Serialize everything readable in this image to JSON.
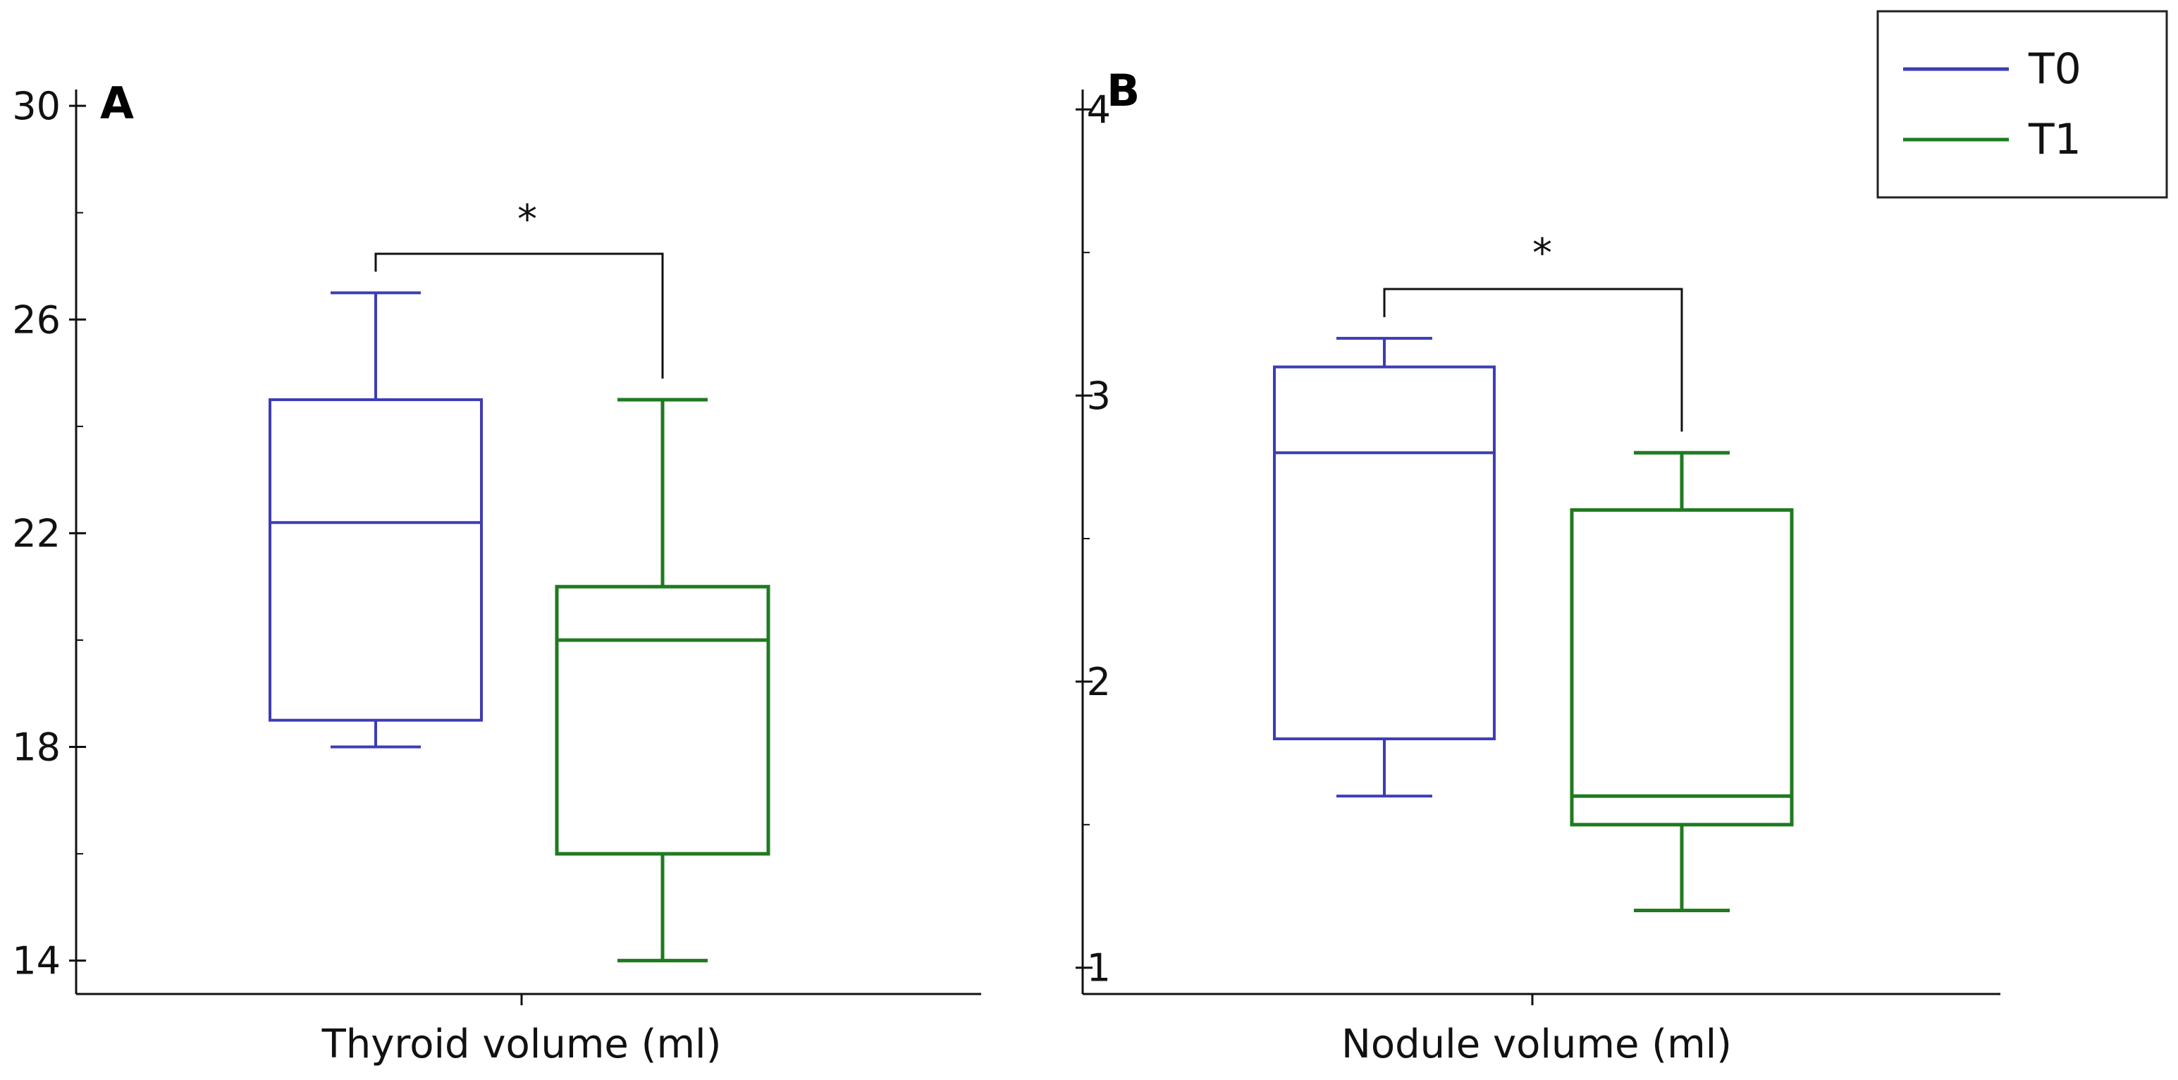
{
  "chart_data": [
    {
      "type": "box",
      "panel_label": "A",
      "xlabel": "Thyroid volume (ml)",
      "ylim": [
        13.6,
        30.2
      ],
      "y_ticks": [
        14,
        18,
        22,
        26,
        30
      ],
      "y_minor_ticks": [
        16,
        20,
        24,
        28
      ],
      "significance": "*",
      "series": [
        {
          "name": "T0",
          "whisker_low": 18.0,
          "q1": 18.5,
          "median": 22.2,
          "q3": 24.5,
          "whisker_high": 26.5
        },
        {
          "name": "T1",
          "whisker_low": 14.0,
          "q1": 16.0,
          "median": 20.0,
          "q3": 21.0,
          "whisker_high": 24.5
        }
      ]
    },
    {
      "type": "box",
      "panel_label": "B",
      "xlabel": "Nodule volume (ml)",
      "ylim": [
        0.95,
        4.05
      ],
      "y_ticks": [
        1,
        2,
        3,
        4
      ],
      "y_minor_ticks": [
        1.5,
        2.5,
        3.5
      ],
      "significance": "*",
      "series": [
        {
          "name": "T0",
          "whisker_low": 1.6,
          "q1": 1.8,
          "median": 2.8,
          "q3": 3.1,
          "whisker_high": 3.2
        },
        {
          "name": "T1",
          "whisker_low": 1.2,
          "q1": 1.5,
          "median": 1.6,
          "q3": 2.6,
          "whisker_high": 2.8
        }
      ]
    }
  ],
  "legend": {
    "position": "top-right",
    "items": [
      {
        "label": "T0",
        "color": "#3d3db5"
      },
      {
        "label": "T1",
        "color": "#1f7a1f"
      }
    ]
  }
}
